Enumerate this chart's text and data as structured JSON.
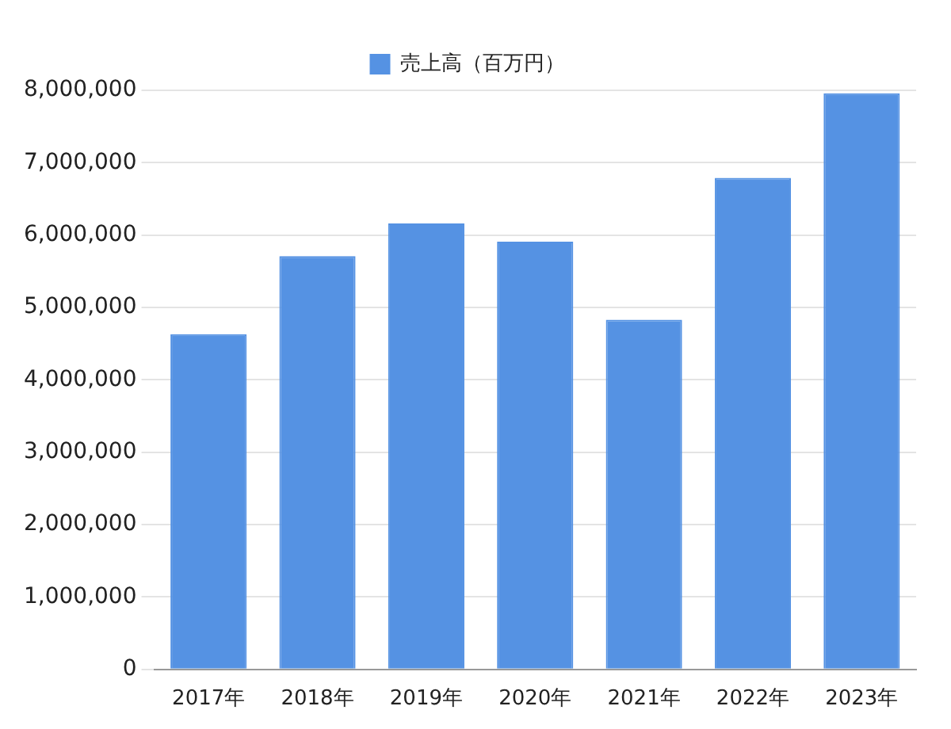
{
  "chart_data": {
    "type": "bar",
    "categories": [
      "2017年",
      "2018年",
      "2019年",
      "2020年",
      "2021年",
      "2022年",
      "2023年"
    ],
    "series": [
      {
        "name": "売上高（百万円）",
        "color": "#5592e3",
        "values": [
          4630000,
          5710000,
          6160000,
          5910000,
          4830000,
          6790000,
          7960000
        ]
      }
    ],
    "ylim": [
      0,
      8000000
    ],
    "yticks": [
      0,
      {
        "value": 1000000,
        "label": "1,000,000"
      },
      {
        "value": 2000000,
        "label": "2,000,000"
      },
      {
        "value": 3000000,
        "label": "3,000,000"
      },
      {
        "value": 4000000,
        "label": "4,000,000"
      },
      {
        "value": 5000000,
        "label": "5,000,000"
      },
      {
        "value": 6000000,
        "label": "6,000,000"
      },
      {
        "value": 7000000,
        "label": "7,000,000"
      },
      {
        "value": 8000000,
        "label": "8,000,000"
      }
    ],
    "grid": "y",
    "legend": "top"
  }
}
